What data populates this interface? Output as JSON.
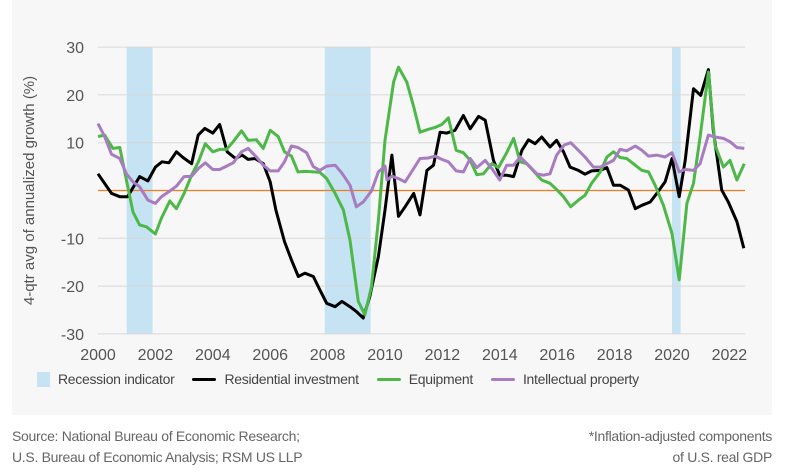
{
  "chart_data": {
    "type": "line",
    "ylabel": "4-qtr avg of annualized growth (%)",
    "xlim": [
      2000,
      2022.6
    ],
    "ylim": [
      -30,
      30
    ],
    "x_ticks": [
      "2000",
      "2002",
      "2004",
      "2006",
      "2008",
      "2010",
      "2012",
      "2014",
      "2016",
      "2018",
      "2020",
      "2022"
    ],
    "y_ticks": [
      "30",
      "20",
      "10",
      "",
      "-10",
      "-20",
      "-30"
    ],
    "y_tick_values": [
      30,
      20,
      10,
      0,
      -10,
      -20,
      -30
    ],
    "grid": true,
    "zero_line_color": "#f47a20",
    "recessions": [
      [
        2001.0,
        2001.9
      ],
      [
        2007.9,
        2009.5
      ],
      [
        2020.0,
        2020.3
      ]
    ],
    "recession_color": "#c5e3f2",
    "legend_placement": "bottom",
    "recession_label": "Recession indicator",
    "series": [
      {
        "name": "Residential investment",
        "color": "#000000",
        "points": [
          [
            2000,
            3.5
          ],
          [
            2000.47,
            -0.6
          ],
          [
            2000.76,
            -1.3
          ],
          [
            2001.03,
            -1.3
          ],
          [
            2001.45,
            2.9
          ],
          [
            2001.74,
            2
          ],
          [
            2002,
            4.9
          ],
          [
            2002.23,
            6
          ],
          [
            2002.47,
            5.8
          ],
          [
            2002.73,
            8.1
          ],
          [
            2002.96,
            6.9
          ],
          [
            2003.26,
            5.6
          ],
          [
            2003.49,
            11.6
          ],
          [
            2003.72,
            13
          ],
          [
            2004,
            12
          ],
          [
            2004.24,
            13.8
          ],
          [
            2004.5,
            8.1
          ],
          [
            2004.79,
            6.7
          ],
          [
            2005.02,
            7.4
          ],
          [
            2005.23,
            6.5
          ],
          [
            2005.47,
            6.7
          ],
          [
            2005.76,
            5.6
          ],
          [
            2006,
            1.8
          ],
          [
            2006.2,
            -4.1
          ],
          [
            2006.5,
            -10.7
          ],
          [
            2006.74,
            -14.5
          ],
          [
            2006.98,
            -18
          ],
          [
            2007.21,
            -17.3
          ],
          [
            2007.5,
            -18
          ],
          [
            2007.73,
            -20.8
          ],
          [
            2007.97,
            -23.6
          ],
          [
            2008.26,
            -24.3
          ],
          [
            2008.5,
            -23.2
          ],
          [
            2008.78,
            -24.3
          ],
          [
            2009,
            -25.3
          ],
          [
            2009.24,
            -26.7
          ],
          [
            2009.47,
            -22.2
          ],
          [
            2009.77,
            -13.8
          ],
          [
            2010,
            -4.1
          ],
          [
            2010.24,
            7.4
          ],
          [
            2010.47,
            -5.4
          ],
          [
            2010.7,
            -3.4
          ],
          [
            2011,
            -0.6
          ],
          [
            2011.22,
            -5.1
          ],
          [
            2011.46,
            4.2
          ],
          [
            2011.69,
            5.3
          ],
          [
            2011.92,
            12.2
          ],
          [
            2012.15,
            12
          ],
          [
            2012.44,
            12.6
          ],
          [
            2012.73,
            15.7
          ],
          [
            2012.97,
            12.9
          ],
          [
            2013.26,
            15.5
          ],
          [
            2013.49,
            14.7
          ],
          [
            2013.78,
            6.3
          ],
          [
            2014,
            3.2
          ],
          [
            2014.24,
            3.2
          ],
          [
            2014.48,
            2.9
          ],
          [
            2014.77,
            8.4
          ],
          [
            2015,
            10.6
          ],
          [
            2015.23,
            9.8
          ],
          [
            2015.46,
            11.2
          ],
          [
            2015.75,
            9.1
          ],
          [
            2015.98,
            10.5
          ],
          [
            2016.22,
            8.1
          ],
          [
            2016.45,
            4.9
          ],
          [
            2016.74,
            4.2
          ],
          [
            2016.97,
            3.4
          ],
          [
            2017.2,
            4.1
          ],
          [
            2017.5,
            4.2
          ],
          [
            2017.73,
            4.8
          ],
          [
            2017.96,
            1.1
          ],
          [
            2018.19,
            1.1
          ],
          [
            2018.48,
            0.1
          ],
          [
            2018.72,
            -3.8
          ],
          [
            2018.95,
            -3.1
          ],
          [
            2019.24,
            -2.4
          ],
          [
            2019.47,
            -0.6
          ],
          [
            2019.76,
            1.8
          ],
          [
            2020,
            6.7
          ],
          [
            2020.25,
            -1.3
          ],
          [
            2020.46,
            6.3
          ],
          [
            2020.75,
            21.3
          ],
          [
            2021,
            19.9
          ],
          [
            2021.27,
            25.3
          ],
          [
            2021.44,
            12.6
          ],
          [
            2021.73,
            0.1
          ],
          [
            2021.96,
            -2.4
          ],
          [
            2022.26,
            -6.5
          ],
          [
            2022.5,
            -12.1
          ]
        ]
      },
      {
        "name": "Equipment",
        "color": "#4db848",
        "points": [
          [
            2000,
            11.3
          ],
          [
            2000.23,
            11.6
          ],
          [
            2000.52,
            8.8
          ],
          [
            2000.76,
            9
          ],
          [
            2000.99,
            2.2
          ],
          [
            2001.22,
            -4.5
          ],
          [
            2001.45,
            -7.2
          ],
          [
            2001.69,
            -7.6
          ],
          [
            2002,
            -9.1
          ],
          [
            2002.21,
            -5.8
          ],
          [
            2002.5,
            -2.2
          ],
          [
            2002.73,
            -3.8
          ],
          [
            2003,
            -0.6
          ],
          [
            2003.26,
            3.2
          ],
          [
            2003.5,
            6
          ],
          [
            2003.74,
            9.8
          ],
          [
            2004,
            8.1
          ],
          [
            2004.24,
            8.6
          ],
          [
            2004.48,
            8.6
          ],
          [
            2004.71,
            10.2
          ],
          [
            2005,
            12.5
          ],
          [
            2005.23,
            10.5
          ],
          [
            2005.52,
            10.6
          ],
          [
            2005.76,
            8.8
          ],
          [
            2006,
            12.6
          ],
          [
            2006.28,
            11.3
          ],
          [
            2006.5,
            8.1
          ],
          [
            2006.74,
            7.2
          ],
          [
            2006.97,
            3.9
          ],
          [
            2007.27,
            4
          ],
          [
            2007.5,
            3.9
          ],
          [
            2007.73,
            3.8
          ],
          [
            2007.97,
            2.5
          ],
          [
            2008.26,
            -0.6
          ],
          [
            2008.55,
            -4.1
          ],
          [
            2008.78,
            -10.4
          ],
          [
            2009.07,
            -23.2
          ],
          [
            2009.3,
            -26
          ],
          [
            2009.53,
            -20.1
          ],
          [
            2009.77,
            -6.2
          ],
          [
            2010,
            10.5
          ],
          [
            2010.3,
            22.7
          ],
          [
            2010.47,
            25.8
          ],
          [
            2010.76,
            22.7
          ],
          [
            2011,
            17.5
          ],
          [
            2011.22,
            12.2
          ],
          [
            2011.51,
            12.8
          ],
          [
            2011.75,
            13.2
          ],
          [
            2011.98,
            13.8
          ],
          [
            2012.21,
            15.2
          ],
          [
            2012.48,
            8.4
          ],
          [
            2012.73,
            7.9
          ],
          [
            2012.97,
            6.3
          ],
          [
            2013.2,
            3.3
          ],
          [
            2013.43,
            3.5
          ],
          [
            2013.72,
            5.6
          ],
          [
            2013.95,
            4.8
          ],
          [
            2014.24,
            7.9
          ],
          [
            2014.48,
            10.9
          ],
          [
            2014.71,
            6
          ],
          [
            2014.94,
            5.6
          ],
          [
            2015.23,
            3.7
          ],
          [
            2015.46,
            2.2
          ],
          [
            2015.75,
            1.5
          ],
          [
            2015.98,
            0.2
          ],
          [
            2016.22,
            -1.3
          ],
          [
            2016.47,
            -3.4
          ],
          [
            2016.74,
            -2
          ],
          [
            2016.97,
            -1
          ],
          [
            2017.2,
            1.5
          ],
          [
            2017.5,
            3.9
          ],
          [
            2017.73,
            7
          ],
          [
            2017.96,
            8.1
          ],
          [
            2018.19,
            6.9
          ],
          [
            2018.42,
            6.7
          ],
          [
            2018.65,
            5.6
          ],
          [
            2018.95,
            4.2
          ],
          [
            2019.18,
            3.9
          ],
          [
            2019.41,
            1.1
          ],
          [
            2019.7,
            -3.1
          ],
          [
            2020,
            -9
          ],
          [
            2020.25,
            -18.7
          ],
          [
            2020.52,
            -2.7
          ],
          [
            2020.75,
            1.5
          ],
          [
            2020.98,
            11.2
          ],
          [
            2021.27,
            24.8
          ],
          [
            2021.5,
            9.5
          ],
          [
            2021.79,
            4.9
          ],
          [
            2022.02,
            6.3
          ],
          [
            2022.26,
            2.2
          ],
          [
            2022.52,
            5.6
          ]
        ]
      },
      {
        "name": "Intellectual property",
        "color": "#a87cc0",
        "points": [
          [
            2000,
            14
          ],
          [
            2000.23,
            11.3
          ],
          [
            2000.47,
            7.6
          ],
          [
            2000.76,
            6.7
          ],
          [
            2000.99,
            3.5
          ],
          [
            2001.22,
            1.8
          ],
          [
            2001.45,
            0.8
          ],
          [
            2001.74,
            -2
          ],
          [
            2002,
            -2.7
          ],
          [
            2002.21,
            -1.3
          ],
          [
            2002.5,
            -0.1
          ],
          [
            2002.73,
            0.9
          ],
          [
            2003,
            2.9
          ],
          [
            2003.26,
            3
          ],
          [
            2003.5,
            4.6
          ],
          [
            2003.74,
            5.8
          ],
          [
            2004,
            4.4
          ],
          [
            2004.24,
            4.4
          ],
          [
            2004.48,
            5.1
          ],
          [
            2004.71,
            5.8
          ],
          [
            2005,
            8.1
          ],
          [
            2005.23,
            8.8
          ],
          [
            2005.52,
            7
          ],
          [
            2005.76,
            5.3
          ],
          [
            2006,
            4.1
          ],
          [
            2006.28,
            4.1
          ],
          [
            2006.5,
            6
          ],
          [
            2006.74,
            9.3
          ],
          [
            2006.97,
            9
          ],
          [
            2007.27,
            7.9
          ],
          [
            2007.5,
            5
          ],
          [
            2007.73,
            4.2
          ],
          [
            2007.97,
            5.1
          ],
          [
            2008.26,
            5.3
          ],
          [
            2008.49,
            3.7
          ],
          [
            2008.78,
            1.1
          ],
          [
            2009,
            -3.4
          ],
          [
            2009.24,
            -2.4
          ],
          [
            2009.53,
            -0.1
          ],
          [
            2009.77,
            3.9
          ],
          [
            2010,
            5.1
          ],
          [
            2010.07,
            2.2
          ],
          [
            2010.24,
            3
          ],
          [
            2010.47,
            2.5
          ],
          [
            2010.7,
            1.8
          ],
          [
            2011,
            4.6
          ],
          [
            2011.22,
            6.7
          ],
          [
            2011.51,
            6.8
          ],
          [
            2011.75,
            7.2
          ],
          [
            2011.98,
            6.5
          ],
          [
            2012.21,
            6
          ],
          [
            2012.48,
            4.1
          ],
          [
            2012.73,
            3.9
          ],
          [
            2012.97,
            6.7
          ],
          [
            2013.2,
            4.8
          ],
          [
            2013.49,
            6.3
          ],
          [
            2013.72,
            4.6
          ],
          [
            2014,
            2.2
          ],
          [
            2014.24,
            5.3
          ],
          [
            2014.48,
            5.3
          ],
          [
            2014.71,
            7
          ],
          [
            2015,
            5.3
          ],
          [
            2015.29,
            3.5
          ],
          [
            2015.52,
            3.2
          ],
          [
            2015.75,
            3.5
          ],
          [
            2015.98,
            7.4
          ],
          [
            2016.24,
            9.5
          ],
          [
            2016.47,
            10
          ],
          [
            2016.74,
            8.4
          ],
          [
            2016.97,
            7
          ],
          [
            2017.26,
            4.9
          ],
          [
            2017.5,
            4.9
          ],
          [
            2017.73,
            5.6
          ],
          [
            2017.96,
            6.3
          ],
          [
            2018.19,
            8.6
          ],
          [
            2018.42,
            8.3
          ],
          [
            2018.72,
            9.3
          ],
          [
            2018.95,
            8.4
          ],
          [
            2019.18,
            7.2
          ],
          [
            2019.47,
            7.4
          ],
          [
            2019.76,
            7
          ],
          [
            2020,
            7.9
          ],
          [
            2020.25,
            3.9
          ],
          [
            2020.46,
            4.4
          ],
          [
            2020.75,
            4.2
          ],
          [
            2020.98,
            5.6
          ],
          [
            2021.27,
            11.6
          ],
          [
            2021.5,
            11.2
          ],
          [
            2021.79,
            10.9
          ],
          [
            2022.02,
            10.2
          ],
          [
            2022.26,
            9
          ],
          [
            2022.52,
            8.8
          ]
        ]
      }
    ]
  },
  "footer": {
    "source_line1": "Source: National Bureau of Economic Research;",
    "source_line2": "U.S. Bureau of Economic Analysis; RSM US LLP",
    "note_line1": "*Inflation-adjusted components",
    "note_line2": "of U.S. real GDP"
  }
}
